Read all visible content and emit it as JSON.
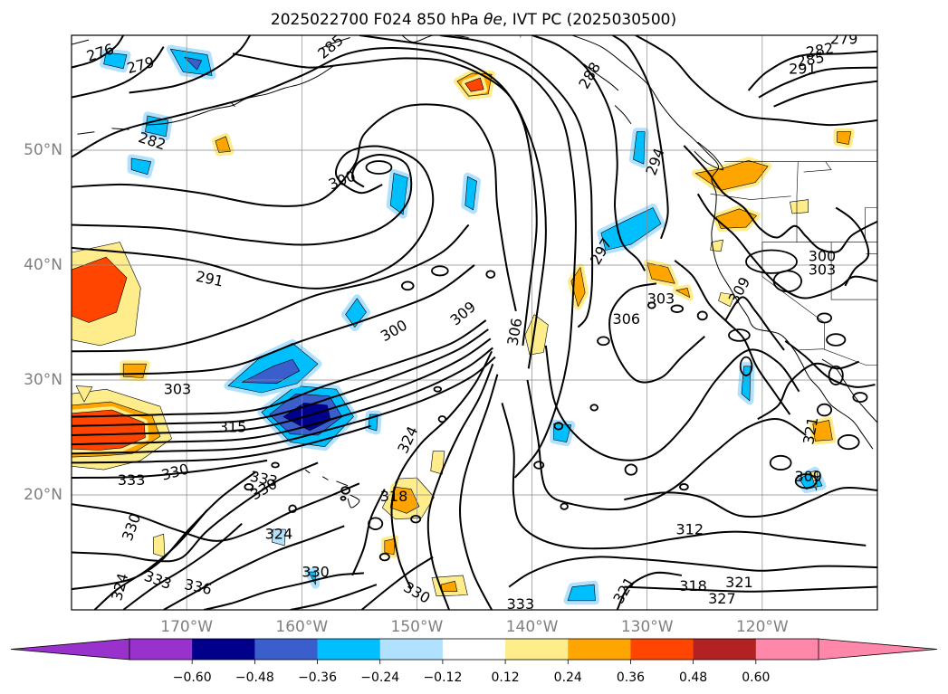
{
  "chart_data": {
    "type": "heatmap",
    "title": "2025022700 F024 850 hPa",
    "title_symbol": "θe",
    "title_rest": ", IVT PC (2025030500)",
    "map_extent": {
      "lon": [
        -180,
        -110
      ],
      "lat": [
        10,
        60
      ]
    },
    "grid": true,
    "lat_ticks": [
      {
        "value": 20,
        "label": "20°N"
      },
      {
        "value": 30,
        "label": "30°N"
      },
      {
        "value": 40,
        "label": "40°N"
      },
      {
        "value": 50,
        "label": "50°N"
      }
    ],
    "lon_ticks": [
      {
        "value": -170,
        "label": "170°W"
      },
      {
        "value": -160,
        "label": "160°W"
      },
      {
        "value": -150,
        "label": "150°W"
      },
      {
        "value": -140,
        "label": "140°W"
      },
      {
        "value": -130,
        "label": "130°W"
      },
      {
        "value": -120,
        "label": "120°W"
      }
    ],
    "colorbar": {
      "orientation": "horizontal",
      "extend": "both",
      "levels": [
        -0.72,
        -0.6,
        -0.48,
        -0.36,
        -0.24,
        -0.12,
        0.12,
        0.24,
        0.36,
        0.48,
        0.6,
        0.72
      ],
      "tick_labels": [
        "−0.60",
        "−0.48",
        "−0.36",
        "−0.24",
        "−0.12",
        "0.12",
        "0.24",
        "0.36",
        "0.48",
        "0.60"
      ],
      "colors": [
        "#9932cc",
        "#00008b",
        "#3a5fcd",
        "#00bfff",
        "#b0e2ff",
        "#ffffff",
        "#ffec8b",
        "#ffa500",
        "#ff4500",
        "#b22222",
        "#ff88aa"
      ],
      "under_color": "#9932cc",
      "over_color": "#ff88aa"
    },
    "contour_labels": [
      {
        "text": "276",
        "lon": -177.5,
        "lat": 58.5,
        "rot": -18
      },
      {
        "text": "279",
        "lon": -174,
        "lat": 57.4,
        "rot": -15
      },
      {
        "text": "282",
        "lon": -173,
        "lat": 50.8,
        "rot": 18
      },
      {
        "text": "300",
        "lon": -156.5,
        "lat": 47.4,
        "rot": -22
      },
      {
        "text": "291",
        "lon": -168,
        "lat": 38.8,
        "rot": 12
      },
      {
        "text": "300",
        "lon": -152,
        "lat": 34.3,
        "rot": -30
      },
      {
        "text": "309",
        "lon": -146,
        "lat": 35.8,
        "rot": -40
      },
      {
        "text": "306",
        "lon": -141.5,
        "lat": 34.2,
        "rot": -80
      },
      {
        "text": "303",
        "lon": -170.8,
        "lat": 29.2,
        "rot": 0
      },
      {
        "text": "315",
        "lon": -166,
        "lat": 25.9,
        "rot": 0
      },
      {
        "text": "324",
        "lon": -150.8,
        "lat": 24.8,
        "rot": -65
      },
      {
        "text": "333",
        "lon": -174.8,
        "lat": 21.3,
        "rot": 0
      },
      {
        "text": "330",
        "lon": -171,
        "lat": 22.0,
        "rot": -15
      },
      {
        "text": "333",
        "lon": -163.3,
        "lat": 21.4,
        "rot": 12
      },
      {
        "text": "330",
        "lon": -163.3,
        "lat": 20.5,
        "rot": -30
      },
      {
        "text": "318",
        "lon": -152,
        "lat": 19.9,
        "rot": 0
      },
      {
        "text": "330",
        "lon": -174.8,
        "lat": 17.2,
        "rot": -70
      },
      {
        "text": "324",
        "lon": -162,
        "lat": 16.6,
        "rot": 0
      },
      {
        "text": "324",
        "lon": -175.8,
        "lat": 12.0,
        "rot": -75
      },
      {
        "text": "333",
        "lon": -172.5,
        "lat": 12.6,
        "rot": 20
      },
      {
        "text": "336",
        "lon": -169,
        "lat": 12.0,
        "rot": 12
      },
      {
        "text": "330",
        "lon": -158.8,
        "lat": 13.3,
        "rot": 0
      },
      {
        "text": "330",
        "lon": -150,
        "lat": 11.5,
        "rot": 30
      },
      {
        "text": "333",
        "lon": -141,
        "lat": 10.5,
        "rot": 0
      },
      {
        "text": "321",
        "lon": -132,
        "lat": 11.7,
        "rot": -60
      },
      {
        "text": "318",
        "lon": -126,
        "lat": 12.1,
        "rot": 0
      },
      {
        "text": "321",
        "lon": -122,
        "lat": 12.4,
        "rot": 0
      },
      {
        "text": "327",
        "lon": -123.5,
        "lat": 11.0,
        "rot": 0
      },
      {
        "text": "312",
        "lon": -126.3,
        "lat": 17.0,
        "rot": 0
      },
      {
        "text": "306",
        "lon": -131.8,
        "lat": 35.3,
        "rot": 0
      },
      {
        "text": "303",
        "lon": -128.8,
        "lat": 37.1,
        "rot": 0
      },
      {
        "text": "309",
        "lon": -122,
        "lat": 37.8,
        "rot": -60
      },
      {
        "text": "297",
        "lon": -134,
        "lat": 41.2,
        "rot": -60
      },
      {
        "text": "294",
        "lon": -129.3,
        "lat": 49.0,
        "rot": -70
      },
      {
        "text": "288",
        "lon": -135,
        "lat": 56.5,
        "rot": -60
      },
      {
        "text": "303",
        "lon": -114.8,
        "lat": 39.6,
        "rot": 0
      },
      {
        "text": "300",
        "lon": -114.8,
        "lat": 40.8,
        "rot": 0
      },
      {
        "text": "309",
        "lon": -116,
        "lat": 21.6,
        "rot": 0
      },
      {
        "text": "321",
        "lon": -115.8,
        "lat": 25.6,
        "rot": -80
      },
      {
        "text": "279",
        "lon": -112.9,
        "lat": 59.7,
        "rot": 0
      },
      {
        "text": "282",
        "lon": -115,
        "lat": 58.7,
        "rot": -10
      },
      {
        "text": "285",
        "lon": -115.8,
        "lat": 57.9,
        "rot": -10
      },
      {
        "text": "291",
        "lon": -116.5,
        "lat": 57.1,
        "rot": 0
      },
      {
        "text": "285",
        "lon": -157.5,
        "lat": 59.0,
        "rot": -40
      }
    ]
  }
}
